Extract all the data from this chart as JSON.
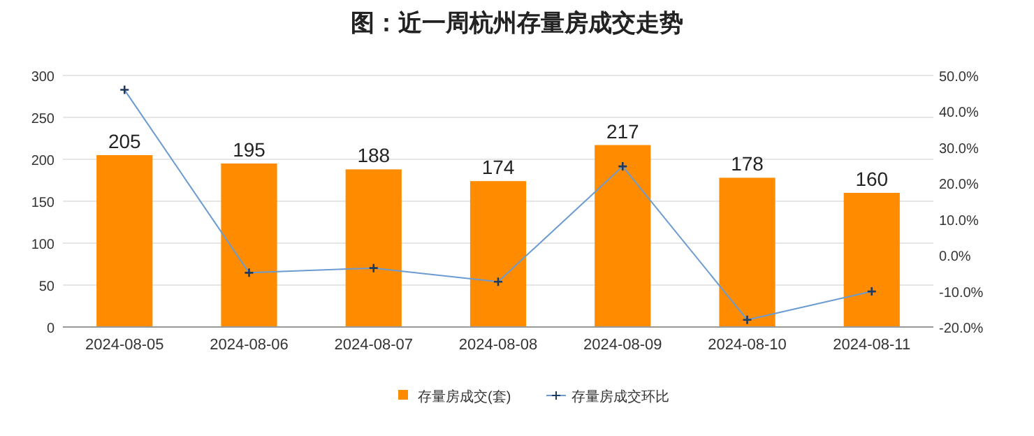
{
  "chart_data": {
    "type": "bar",
    "title": "图：近一周杭州存量房成交走势",
    "categories": [
      "2024-08-05",
      "2024-08-06",
      "2024-08-07",
      "2024-08-08",
      "2024-08-09",
      "2024-08-10",
      "2024-08-11"
    ],
    "series": [
      {
        "name": "存量房成交(套)",
        "color": "#ff8c00",
        "values": [
          205,
          195,
          188,
          174,
          217,
          178,
          160
        ],
        "value_labels": [
          "205",
          "195",
          "188",
          "174",
          "217",
          "178",
          "160"
        ]
      },
      {
        "name": "存量房成交环比",
        "type": "line",
        "axis": "y2",
        "color": "#6a9bd1",
        "marker": "cross",
        "values": [
          46,
          -4.9,
          -3.6,
          -7.4,
          24.7,
          -18,
          -10.1
        ]
      }
    ],
    "ylim": [
      0,
      300
    ],
    "yticks": [
      0,
      50,
      100,
      150,
      200,
      250,
      300
    ],
    "y2lim": [
      -20,
      50
    ],
    "y2ticks": [
      {
        "value": -20,
        "label": "-20.0%"
      },
      {
        "value": -10,
        "label": "-10.0%"
      },
      {
        "value": 0,
        "label": "0.0%"
      },
      {
        "value": 10,
        "label": "10.0%"
      },
      {
        "value": 20,
        "label": "20.0%"
      },
      {
        "value": 30,
        "label": "30.0%"
      },
      {
        "value": 40,
        "label": "40.0%"
      },
      {
        "value": 50,
        "label": "50.0%"
      }
    ],
    "grid": "y",
    "legend": "bottom"
  }
}
